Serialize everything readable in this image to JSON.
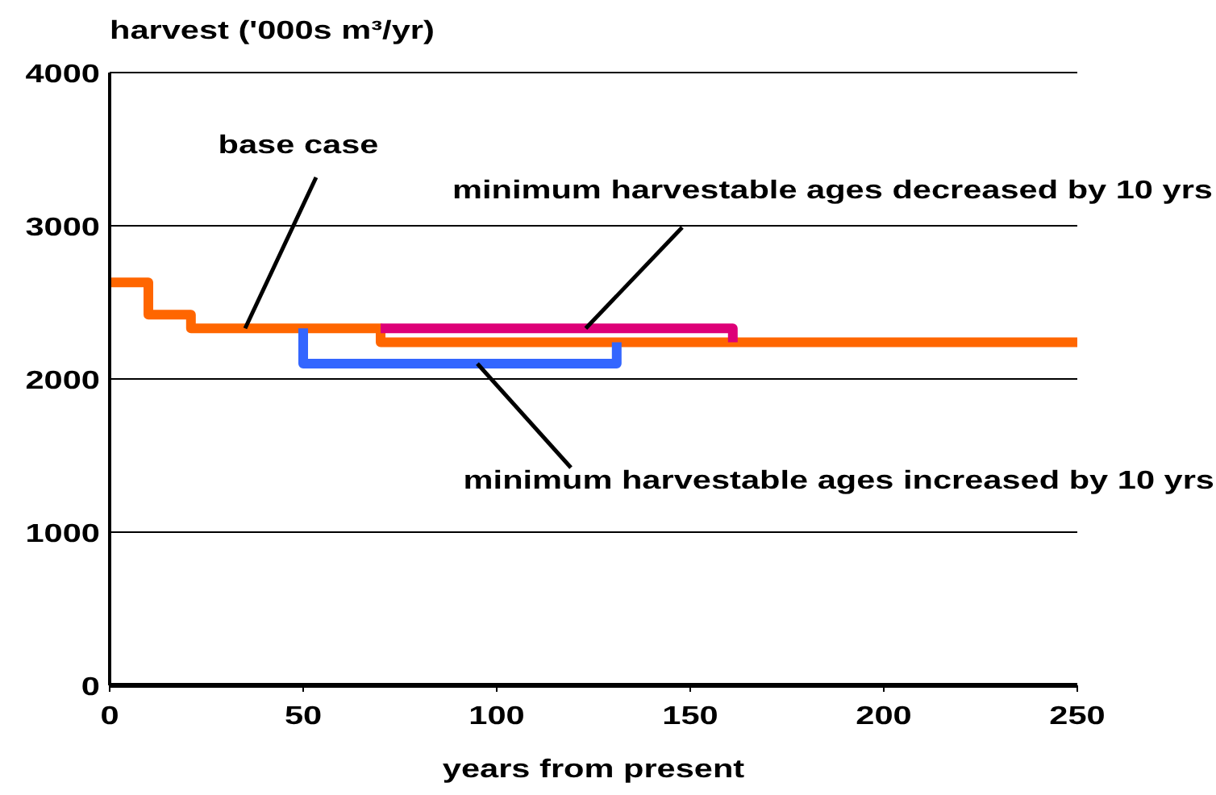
{
  "chart_data": {
    "type": "line",
    "xlabel": "years from present",
    "ylabel": "harvest ('000s m³/yr)",
    "xlim": [
      0,
      250
    ],
    "xticks": [
      0,
      50,
      100,
      150,
      200,
      250
    ],
    "ylim": [
      0,
      4000
    ],
    "yticks": [
      0,
      1000,
      2000,
      3000,
      4000
    ],
    "grid": "y",
    "legend": false,
    "marker": "none",
    "line_style": "solid",
    "series": [
      {
        "name": "base case",
        "type": "step",
        "color": "#ff6600",
        "x": [
          0,
          10,
          21,
          70,
          250
        ],
        "values": [
          2630,
          2420,
          2330,
          2240,
          2240
        ]
      },
      {
        "name": "minimum harvestable ages decreased by 10 yrs",
        "color": "#dd0077",
        "x": [
          70,
          161,
          161
        ],
        "values": [
          2330,
          2330,
          2240
        ]
      },
      {
        "name": "minimum harvestable ages increased by 10 yrs",
        "color": "#3366ff",
        "x": [
          50,
          50,
          131,
          131
        ],
        "values": [
          2330,
          2100,
          2100,
          2240
        ]
      }
    ]
  }
}
